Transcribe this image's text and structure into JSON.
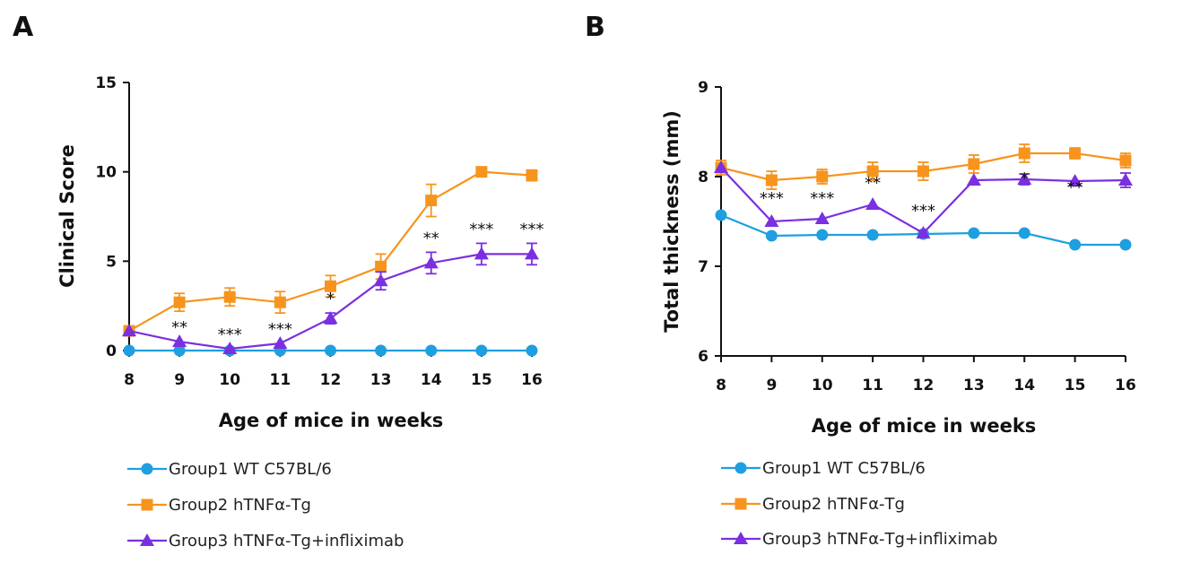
{
  "chart_data": [
    {
      "panel": "A",
      "type": "line",
      "xlabel": "Age of mice in weeks",
      "ylabel": "Clinical Score",
      "x": [
        8,
        9,
        10,
        11,
        12,
        13,
        14,
        15,
        16
      ],
      "xlim": [
        8,
        16
      ],
      "ylim": [
        0,
        15
      ],
      "yticks": [
        "0",
        "5",
        "10",
        "15"
      ],
      "xticks": [
        "8",
        "9",
        "10",
        "11",
        "12",
        "13",
        "14",
        "15",
        "16"
      ],
      "series": [
        {
          "name": "Group1  WT C57BL/6",
          "legend": "Group1  WT C57BL/6",
          "color": "#1E9FE0",
          "marker": "circle",
          "values": [
            0,
            0,
            0,
            0,
            0,
            0,
            0,
            0,
            0
          ],
          "errors": [
            0,
            0,
            0,
            0,
            0,
            0,
            0,
            0,
            0
          ]
        },
        {
          "name": "Group2  hTNFα-Tg",
          "legend": "Group2  hTNFα-Tg",
          "color": "#F7941D",
          "marker": "square",
          "values": [
            1.1,
            2.7,
            3.0,
            2.7,
            3.6,
            4.7,
            8.4,
            10.0,
            9.8
          ],
          "errors": [
            0.1,
            0.5,
            0.5,
            0.6,
            0.6,
            0.7,
            0.9,
            0.15,
            0.3
          ]
        },
        {
          "name": "Group3  hTNFα-Tg+infliximab",
          "legend": "Group3  hTNFα-Tg+infliximab",
          "color": "#7B2FE0",
          "marker": "triangle",
          "values": [
            1.1,
            0.5,
            0.1,
            0.4,
            1.8,
            3.9,
            4.9,
            5.4,
            5.4
          ],
          "errors": [
            0,
            0,
            0,
            0,
            0.3,
            0.5,
            0.6,
            0.6,
            0.6
          ]
        }
      ],
      "annotations": [
        {
          "x": 9,
          "y": 0.5,
          "text": "**"
        },
        {
          "x": 10,
          "y": 0.1,
          "text": "***"
        },
        {
          "x": 11,
          "y": 0.4,
          "text": "***"
        },
        {
          "x": 12,
          "y": 2.1,
          "text": "*"
        },
        {
          "x": 14,
          "y": 5.5,
          "text": "**"
        },
        {
          "x": 15,
          "y": 6.0,
          "text": "***"
        },
        {
          "x": 16,
          "y": 6.0,
          "text": "***"
        }
      ]
    },
    {
      "panel": "B",
      "type": "line",
      "xlabel": "Age of mice in weeks",
      "ylabel": "Total thickness (mm)",
      "x": [
        8,
        9,
        10,
        11,
        12,
        13,
        14,
        15,
        16
      ],
      "xlim": [
        8,
        16
      ],
      "ylim": [
        6,
        9
      ],
      "yticks": [
        "6",
        "7",
        "8",
        "9"
      ],
      "xticks": [
        "8",
        "9",
        "10",
        "11",
        "12",
        "13",
        "14",
        "15",
        "16"
      ],
      "series": [
        {
          "name": "Group1 WT C57BL/6",
          "legend": "Group1 WT C57BL/6",
          "color": "#1E9FE0",
          "marker": "circle",
          "values": [
            7.57,
            7.34,
            7.35,
            7.35,
            7.36,
            7.37,
            7.37,
            7.24,
            7.24
          ],
          "errors": [
            0,
            0,
            0,
            0,
            0,
            0,
            0,
            0,
            0
          ]
        },
        {
          "name": "Group2 hTNFα-Tg",
          "legend": "Group2 hTNFα-Tg",
          "color": "#F7941D",
          "marker": "square",
          "values": [
            8.1,
            7.96,
            8.0,
            8.06,
            8.06,
            8.14,
            8.26,
            8.26,
            8.18
          ],
          "errors": [
            0.08,
            0.1,
            0.08,
            0.1,
            0.1,
            0.1,
            0.1,
            0.06,
            0.08
          ]
        },
        {
          "name": "Group3 hTNFα-Tg+infliximab",
          "legend": "Group3 hTNFα-Tg+infliximab",
          "color": "#7B2FE0",
          "marker": "triangle",
          "values": [
            8.1,
            7.5,
            7.53,
            7.69,
            7.37,
            7.96,
            7.97,
            7.95,
            7.96
          ],
          "errors": [
            0,
            0,
            0,
            0,
            0,
            0,
            0.06,
            0,
            0.08
          ]
        }
      ],
      "annotations": [
        {
          "x": 9,
          "y": 7.6,
          "text": "***"
        },
        {
          "x": 10,
          "y": 7.6,
          "text": "***"
        },
        {
          "x": 11,
          "y": 7.77,
          "text": "**"
        },
        {
          "x": 12,
          "y": 7.46,
          "text": "***"
        },
        {
          "x": 14,
          "y": 7.82,
          "text": "*"
        },
        {
          "x": 15,
          "y": 7.72,
          "text": "**"
        }
      ]
    }
  ]
}
